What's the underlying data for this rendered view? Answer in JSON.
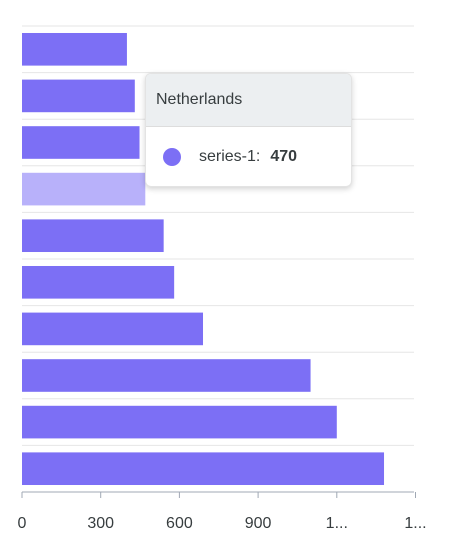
{
  "chart_data": {
    "type": "bar",
    "orientation": "horizontal",
    "categories": [
      "",
      "",
      "",
      "Netherlands",
      "",
      "",
      "",
      "",
      "",
      ""
    ],
    "series": [
      {
        "name": "series-1",
        "values": [
          400,
          430,
          448,
          470,
          540,
          580,
          690,
          1100,
          1200,
          1380
        ]
      }
    ],
    "xlim": [
      0,
      1500
    ],
    "x_ticks": [
      "0",
      "300",
      "600",
      "900",
      "1...",
      "1..."
    ],
    "grid": true,
    "bar_color": "#7c6ff5",
    "highlight_color": "#b8b1fa"
  },
  "tooltip": {
    "title": "Netherlands",
    "series_label": "series-1:",
    "value": "470",
    "marker_color": "#7c6ff5"
  }
}
